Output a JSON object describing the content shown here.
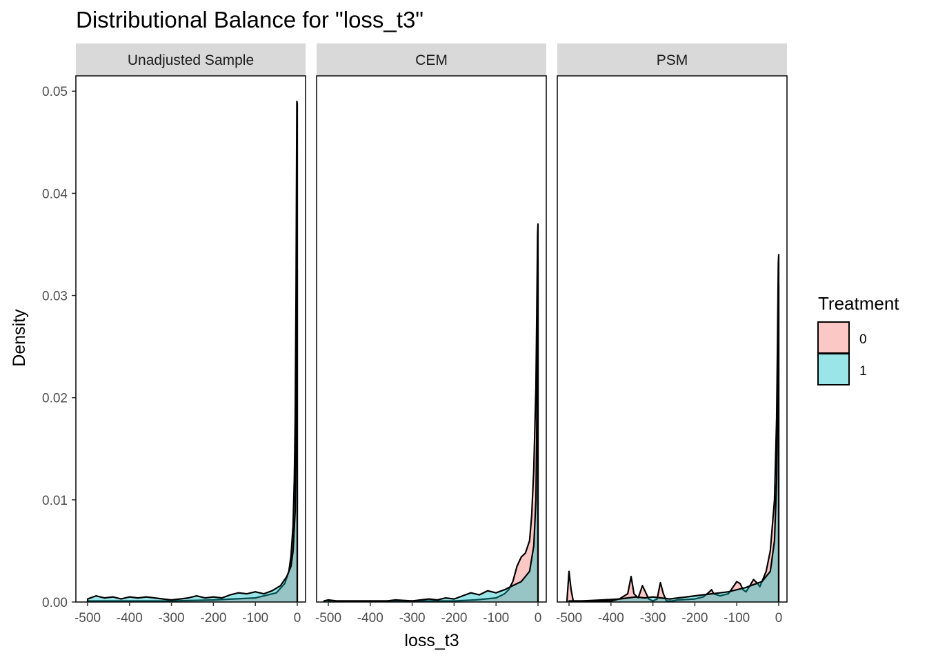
{
  "chart_data": {
    "type": "area",
    "title": "Distributional Balance for \"loss_t3\"",
    "xlabel": "loss_t3",
    "ylabel": "Density",
    "xlim": [
      -510,
      0
    ],
    "ylim": [
      0,
      0.0515
    ],
    "x_ticks": [
      -500,
      -400,
      -300,
      -200,
      -100,
      0
    ],
    "y_ticks": [
      0.0,
      0.01,
      0.02,
      0.03,
      0.04,
      0.05
    ],
    "y_tick_labels": [
      "0.00",
      "0.01",
      "0.02",
      "0.03",
      "0.04",
      "0.05"
    ],
    "grid": false,
    "legend": {
      "title": "Treatment",
      "placement": "right",
      "entries": [
        {
          "label": "0",
          "color": "#F8766D"
        },
        {
          "label": "1",
          "color": "#00BFC4"
        }
      ]
    },
    "panels": [
      {
        "strip": "Unadjusted Sample",
        "series": [
          {
            "name": "0",
            "color": "#F8766D",
            "x": [
              -500,
              -400,
              -300,
              -200,
              -100,
              -50,
              -30,
              -20,
              -15,
              -10,
              -7,
              -5,
              -3,
              -2,
              -1,
              0
            ],
            "y": [
              0.0001,
              0.0001,
              0.0001,
              0.0002,
              0.0004,
              0.0009,
              0.0018,
              0.003,
              0.0045,
              0.0075,
              0.012,
              0.018,
              0.03,
              0.04,
              0.049,
              0.0488
            ]
          },
          {
            "name": "1",
            "color": "#00BFC4",
            "x": [
              -500,
              -480,
              -460,
              -440,
              -420,
              -400,
              -380,
              -360,
              -340,
              -320,
              -300,
              -280,
              -260,
              -240,
              -220,
              -200,
              -180,
              -160,
              -140,
              -120,
              -100,
              -80,
              -60,
              -40,
              -25,
              -15,
              -10,
              -5,
              -3,
              -1,
              0
            ],
            "y": [
              0.0003,
              0.0006,
              0.0004,
              0.0005,
              0.0003,
              0.0005,
              0.0004,
              0.0005,
              0.0004,
              0.0003,
              0.0002,
              0.0003,
              0.0004,
              0.0006,
              0.0004,
              0.0005,
              0.0004,
              0.0007,
              0.0009,
              0.0008,
              0.001,
              0.0008,
              0.0011,
              0.0016,
              0.0025,
              0.0035,
              0.005,
              0.009,
              0.016,
              0.028,
              0.0325
            ]
          }
        ]
      },
      {
        "strip": "CEM",
        "series": [
          {
            "name": "0",
            "color": "#F8766D",
            "x": [
              -500,
              -400,
              -300,
              -200,
              -150,
              -100,
              -80,
              -70,
              -60,
              -50,
              -40,
              -30,
              -20,
              -15,
              -10,
              -5,
              -3,
              -1,
              0
            ],
            "y": [
              0.0001,
              0.0001,
              0.0001,
              0.0001,
              0.0002,
              0.0004,
              0.0008,
              0.0012,
              0.002,
              0.0035,
              0.0044,
              0.0048,
              0.006,
              0.0085,
              0.013,
              0.021,
              0.028,
              0.036,
              0.037
            ]
          },
          {
            "name": "1",
            "color": "#00BFC4",
            "x": [
              -510,
              -500,
              -480,
              -460,
              -420,
              -400,
              -360,
              -340,
              -300,
              -280,
              -260,
              -240,
              -220,
              -200,
              -180,
              -160,
              -140,
              -120,
              -100,
              -80,
              -60,
              -40,
              -20,
              -10,
              -5,
              -3,
              -1,
              0
            ],
            "y": [
              0.0001,
              0.0002,
              0.0001,
              0.0001,
              0.0001,
              0.0001,
              0.0001,
              0.0002,
              0.0001,
              0.0002,
              0.0003,
              0.0002,
              0.0004,
              0.0003,
              0.0006,
              0.0009,
              0.0007,
              0.0011,
              0.0009,
              0.0012,
              0.0016,
              0.002,
              0.003,
              0.0055,
              0.01,
              0.017,
              0.03,
              0.0335
            ]
          }
        ]
      },
      {
        "strip": "PSM",
        "series": [
          {
            "name": "0",
            "color": "#F8766D",
            "x": [
              -505,
              -500,
              -495,
              -490,
              -485,
              -470,
              -420,
              -380,
              -360,
              -352,
              -345,
              -335,
              -325,
              -318,
              -310,
              -300,
              -290,
              -282,
              -275,
              -268,
              -255,
              -240,
              -200,
              -180,
              -165,
              -160,
              -155,
              -140,
              -120,
              -110,
              -100,
              -92,
              -85,
              -78,
              -70,
              -60,
              -50,
              -45,
              -40,
              -30,
              -20,
              -10,
              -5,
              -3,
              -1,
              0
            ],
            "y": [
              0.0001,
              0.003,
              0.0012,
              0.0001,
              0.0001,
              0.0001,
              0.0002,
              0.0003,
              0.0008,
              0.0025,
              0.0008,
              0.0004,
              0.0016,
              0.001,
              0.0003,
              0.0001,
              0.0003,
              0.0019,
              0.0008,
              0.0001,
              0.0001,
              0.0002,
              0.0003,
              0.0005,
              0.001,
              0.0012,
              0.0008,
              0.0006,
              0.0008,
              0.0014,
              0.002,
              0.0018,
              0.0012,
              0.001,
              0.0015,
              0.0022,
              0.0018,
              0.0015,
              0.002,
              0.003,
              0.005,
              0.01,
              0.018,
              0.025,
              0.033,
              0.034
            ]
          },
          {
            "name": "1",
            "color": "#00BFC4",
            "x": [
              -500,
              -400,
              -380,
              -360,
              -340,
              -320,
              -300,
              -280,
              -260,
              -240,
              -220,
              -200,
              -180,
              -160,
              -140,
              -120,
              -100,
              -80,
              -60,
              -40,
              -20,
              -10,
              -5,
              -3,
              -1,
              0
            ],
            "y": [
              0.0001,
              0.0001,
              0.0003,
              0.0004,
              0.0005,
              0.0004,
              0.0005,
              0.0004,
              0.0003,
              0.0004,
              0.0005,
              0.0006,
              0.0007,
              0.0008,
              0.0009,
              0.001,
              0.0012,
              0.0014,
              0.0017,
              0.002,
              0.003,
              0.006,
              0.012,
              0.019,
              0.029,
              0.031
            ]
          }
        ]
      }
    ]
  }
}
